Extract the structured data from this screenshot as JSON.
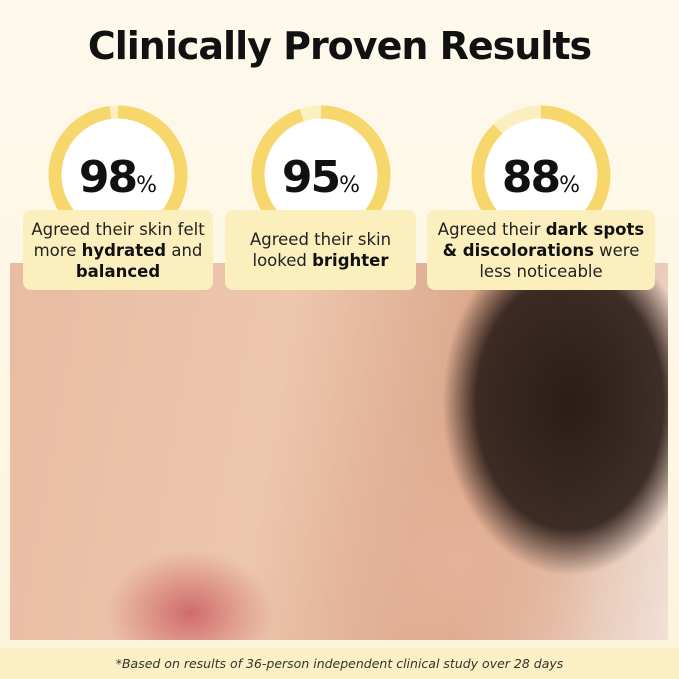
{
  "title": "Clinically Proven Results",
  "ring_colors": {
    "filled": "#f7d66b",
    "remainder": "#fbefc0"
  },
  "stats": [
    {
      "value": 98,
      "number": "98",
      "unit": "%",
      "text_parts": [
        "Agreed their skin felt more ",
        "hydrated",
        " and ",
        "balanced"
      ]
    },
    {
      "value": 95,
      "number": "95",
      "unit": "%",
      "text_parts": [
        "Agreed their skin looked ",
        "brighter",
        "",
        ""
      ]
    },
    {
      "value": 88,
      "number": "88",
      "unit": "%",
      "text_parts": [
        "Agreed their ",
        "dark spots & discolorations",
        " were less noticeable",
        ""
      ]
    }
  ],
  "footnote": "*Based on results of 36-person independent clinical study over 28 days"
}
